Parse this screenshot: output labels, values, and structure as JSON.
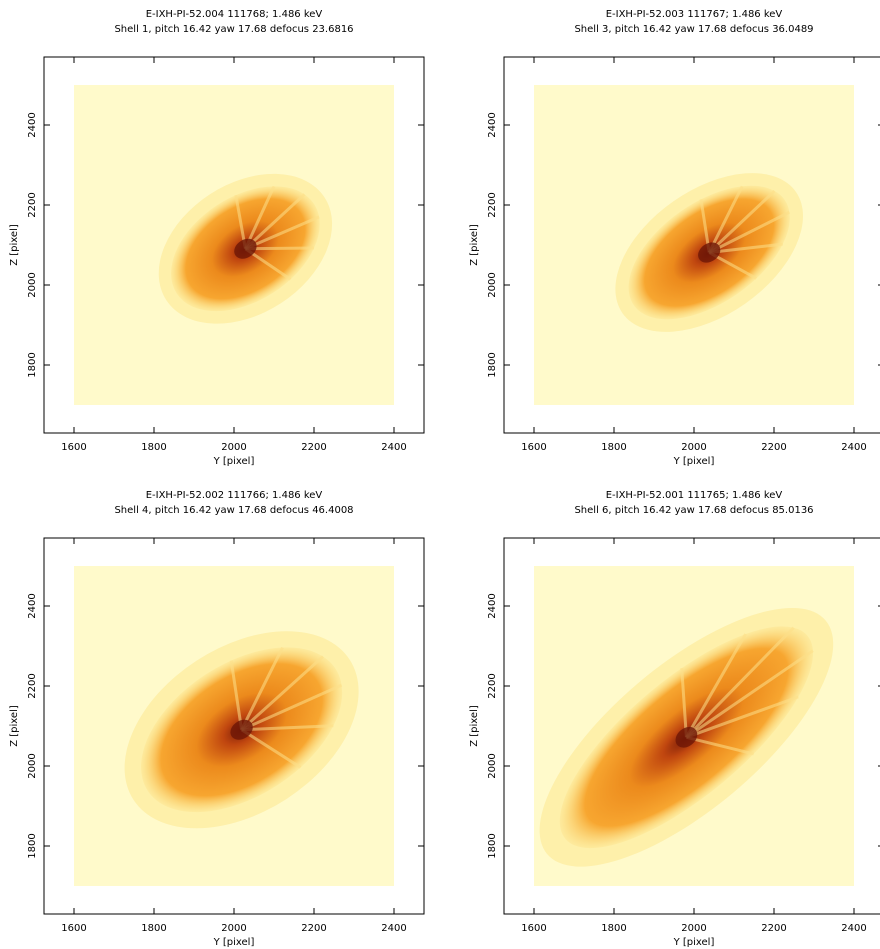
{
  "chart_data": [
    {
      "type": "image",
      "title": "E-IXH-PI-52.004 111768; 1.486 keV",
      "subtitle": "Shell 1, pitch 16.42 yaw 17.68 defocus 23.6816",
      "xlabel": "Y [pixel]",
      "ylabel": "Z [pixel]",
      "xlim": [
        1525,
        2475
      ],
      "ylim": [
        1630,
        2570
      ],
      "xticks": [
        1600,
        1800,
        2000,
        2200,
        2400
      ],
      "yticks": [
        1800,
        2000,
        2200,
        2400
      ],
      "extent": [
        1600,
        2400,
        1700,
        2500
      ],
      "color": "#fffacb"
    },
    {
      "type": "image",
      "title": "E-IXH-PI-52.003 111767; 1.486 keV",
      "subtitle": "Shell 3, pitch 16.42 yaw 17.68 defocus 36.0489",
      "xlabel": "Y [pixel]",
      "ylabel": "Z [pixel]",
      "xlim": [
        1525,
        2475
      ],
      "ylim": [
        1630,
        2570
      ],
      "xticks": [
        1600,
        1800,
        2000,
        2200,
        2400
      ],
      "yticks": [
        1800,
        2000,
        2200,
        2400
      ],
      "extent": [
        1600,
        2400,
        1700,
        2500
      ],
      "color": "#fffacb"
    },
    {
      "type": "image",
      "title": "E-IXH-PI-52.002 111766; 1.486 keV",
      "subtitle": "Shell 4, pitch 16.42 yaw 17.68 defocus 46.4008",
      "xlabel": "Y [pixel]",
      "ylabel": "Z [pixel]",
      "xlim": [
        1525,
        2475
      ],
      "ylim": [
        1630,
        2570
      ],
      "xticks": [
        1600,
        1800,
        2000,
        2200,
        2400
      ],
      "yticks": [
        1800,
        2000,
        2200,
        2400
      ],
      "extent": [
        1600,
        2400,
        1700,
        2500
      ],
      "color": "#fffacb"
    },
    {
      "type": "image",
      "title": "E-IXH-PI-52.001 111765; 1.486 keV",
      "subtitle": "Shell 6, pitch 16.42 yaw 17.68 defocus 85.0136",
      "xlabel": "Y [pixel]",
      "ylabel": "Z [pixel]",
      "xlim": [
        1525,
        2475
      ],
      "ylim": [
        1630,
        2570
      ],
      "xticks": [
        1600,
        1800,
        2000,
        2200,
        2400
      ],
      "yticks": [
        1800,
        2000,
        2200,
        2400
      ],
      "extent": [
        1600,
        2400,
        1700,
        2500
      ],
      "color": "#fffacb"
    }
  ]
}
